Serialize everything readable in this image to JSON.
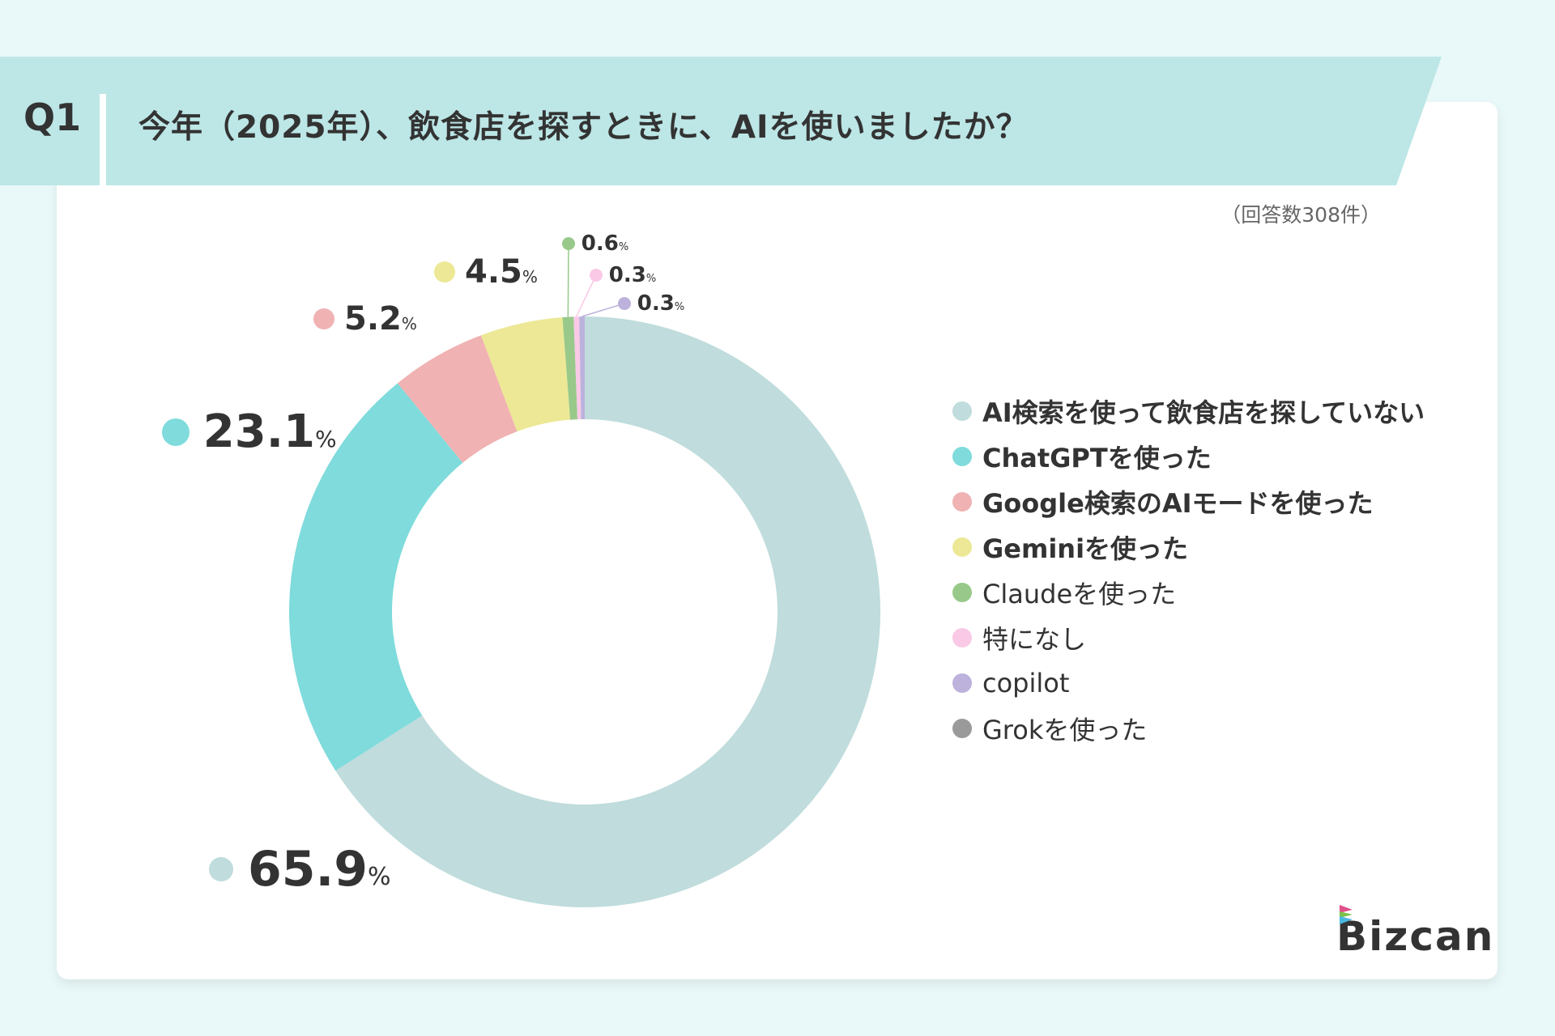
{
  "header": {
    "question": "Q1",
    "title": "今年（2025年）、飲食店を探すときに、AIを使いましたか？"
  },
  "response_count": "（回答数308件）",
  "logo": "Bizcan",
  "colors": {
    "background": "#e9f8f8",
    "band": "#bde6e6"
  },
  "chart_data": {
    "type": "pie",
    "donut": true,
    "unit": "%",
    "start": "top, clockwise",
    "legend_placement": "right",
    "categories": [
      "AI検索を使って飲食店を探していない",
      "ChatGPTを使った",
      "Google検索のAIモードを使った",
      "Geminiを使った",
      "Claudeを使った",
      "特になし",
      "copilot",
      "Grokを使った"
    ],
    "values": [
      65.9,
      23.1,
      5.2,
      4.5,
      0.6,
      0.3,
      0.3,
      0
    ],
    "labels": [
      "65.9",
      "23.1",
      "5.2",
      "4.5",
      "0.6",
      "0.3",
      "0.3",
      ""
    ],
    "colors": [
      "#c0dcdc",
      "#7fdbdc",
      "#f0b2b2",
      "#ece896",
      "#98c98a",
      "#f9c9e6",
      "#bcb2dc",
      "#9a9a9a"
    ],
    "legend_bold": [
      true,
      true,
      true,
      true,
      false,
      false,
      false,
      false
    ]
  }
}
